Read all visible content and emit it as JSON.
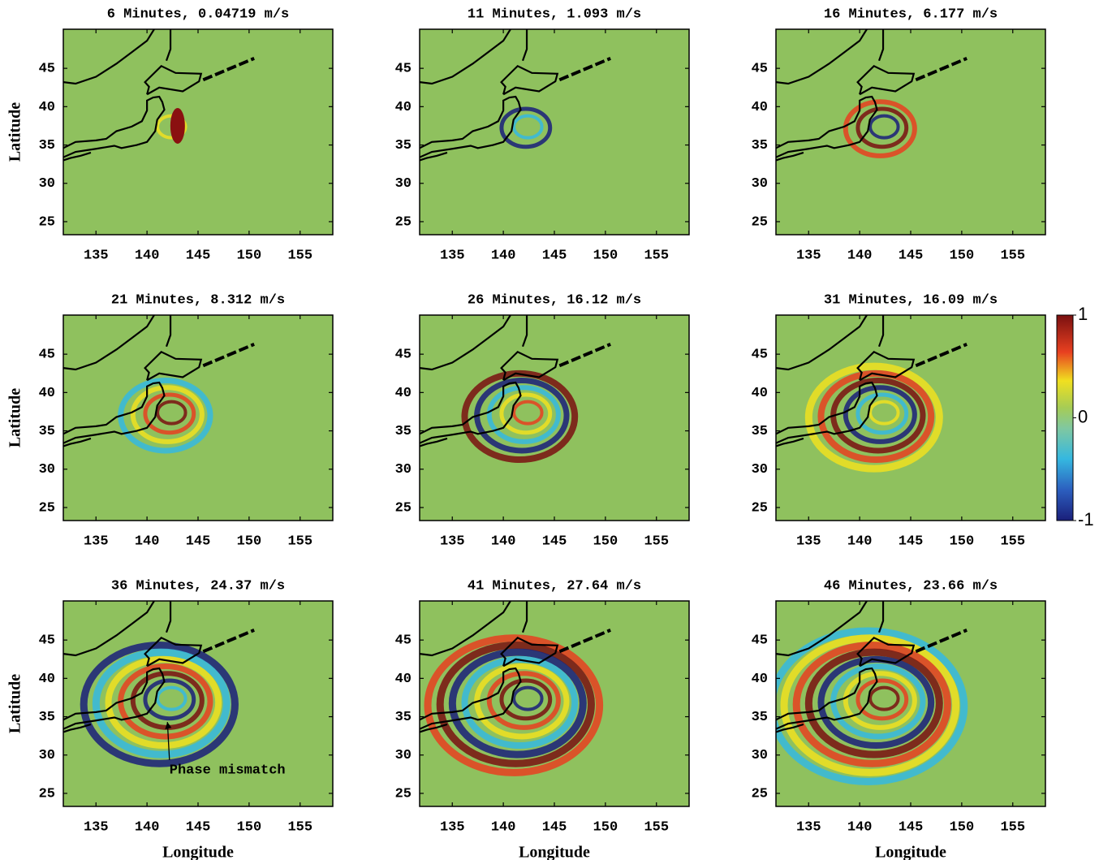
{
  "chart_data": [
    {
      "type": "heatmap",
      "title": "6 Minutes, 0.04719 m/s",
      "ylabel": "Latitude",
      "xlim": [
        131.8,
        158.2
      ],
      "ylim": [
        23.3,
        50.1
      ],
      "xticks": [
        135,
        140,
        145,
        150,
        155
      ],
      "yticks": [
        25,
        30,
        35,
        40,
        45
      ]
    },
    {
      "type": "heatmap",
      "title": "11 Minutes, 1.093 m/s",
      "xlim": [
        131.8,
        158.2
      ],
      "ylim": [
        23.3,
        50.1
      ],
      "xticks": [
        135,
        140,
        145,
        150,
        155
      ],
      "yticks": [
        25,
        30,
        35,
        40,
        45
      ]
    },
    {
      "type": "heatmap",
      "title": "16 Minutes, 6.177 m/s",
      "xlim": [
        131.8,
        158.2
      ],
      "ylim": [
        23.3,
        50.1
      ],
      "xticks": [
        135,
        140,
        145,
        150,
        155
      ],
      "yticks": [
        25,
        30,
        35,
        40,
        45
      ]
    },
    {
      "type": "heatmap",
      "title": "21 Minutes, 8.312 m/s",
      "ylabel": "Latitude",
      "xlim": [
        131.8,
        158.2
      ],
      "ylim": [
        23.3,
        50.1
      ],
      "xticks": [
        135,
        140,
        145,
        150,
        155
      ],
      "yticks": [
        25,
        30,
        35,
        40,
        45
      ]
    },
    {
      "type": "heatmap",
      "title": "26 Minutes, 16.12 m/s",
      "xlim": [
        131.8,
        158.2
      ],
      "ylim": [
        23.3,
        50.1
      ],
      "xticks": [
        135,
        140,
        145,
        150,
        155
      ],
      "yticks": [
        25,
        30,
        35,
        40,
        45
      ]
    },
    {
      "type": "heatmap",
      "title": "31 Minutes, 16.09 m/s",
      "xlim": [
        131.8,
        158.2
      ],
      "ylim": [
        23.3,
        50.1
      ],
      "xticks": [
        135,
        140,
        145,
        150,
        155
      ],
      "yticks": [
        25,
        30,
        35,
        40,
        45
      ],
      "colorbar": {
        "lim": [
          -1,
          1
        ],
        "ticks": [
          -1,
          0,
          1
        ]
      }
    },
    {
      "type": "heatmap",
      "title": "36 Minutes, 24.37 m/s",
      "ylabel": "Latitude",
      "xlabel": "Longitude",
      "xlim": [
        131.8,
        158.2
      ],
      "ylim": [
        23.3,
        50.1
      ],
      "xticks": [
        135,
        140,
        145,
        150,
        155
      ],
      "yticks": [
        25,
        30,
        35,
        40,
        45
      ],
      "annotations": [
        {
          "text": "Phase mismatch",
          "x": 142,
          "y": 34.3,
          "text_x": 142.2,
          "text_y": 28.3
        }
      ]
    },
    {
      "type": "heatmap",
      "title": "41 Minutes, 27.64 m/s",
      "xlabel": "Longitude",
      "xlim": [
        131.8,
        158.2
      ],
      "ylim": [
        23.3,
        50.1
      ],
      "xticks": [
        135,
        140,
        145,
        150,
        155
      ],
      "yticks": [
        25,
        30,
        35,
        40,
        45
      ]
    },
    {
      "type": "heatmap",
      "title": "46 Minutes, 23.66 m/s",
      "xlabel": "Longitude",
      "xlim": [
        131.8,
        158.2
      ],
      "ylim": [
        23.3,
        50.1
      ],
      "xticks": [
        135,
        140,
        145,
        150,
        155
      ],
      "yticks": [
        25,
        30,
        35,
        40,
        45
      ]
    }
  ]
}
